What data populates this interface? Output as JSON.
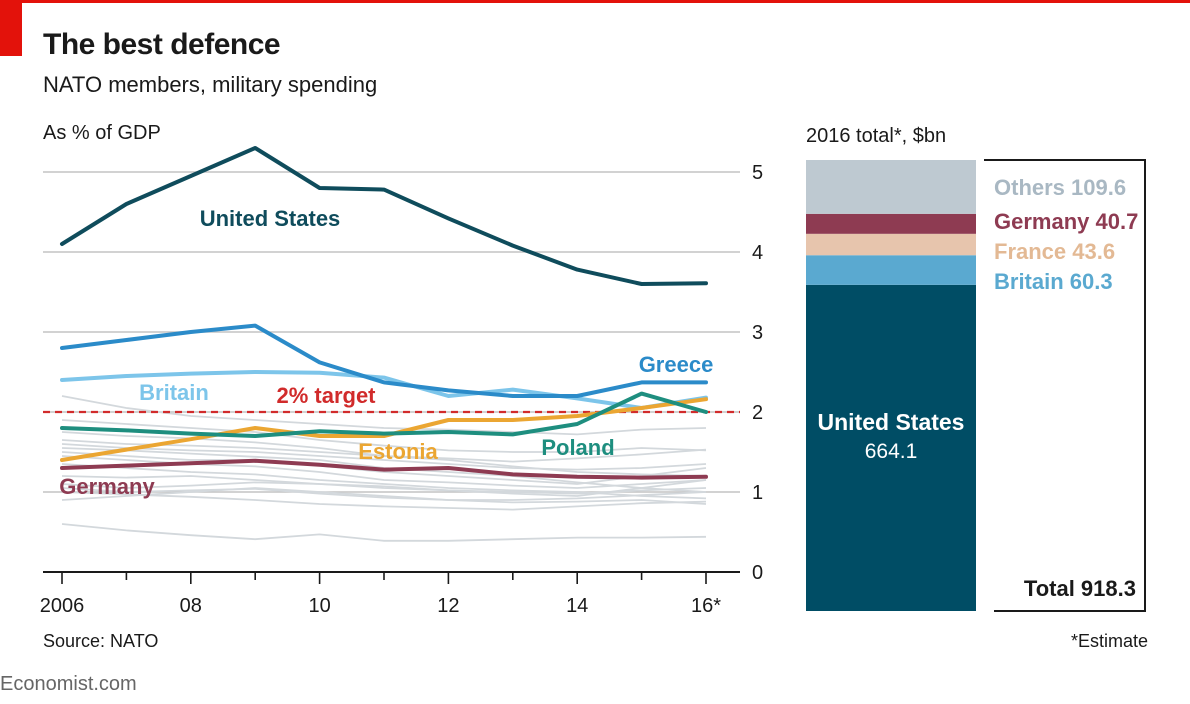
{
  "header": {
    "title": "The best defence",
    "subtitle": "NATO members, military spending"
  },
  "footer": {
    "source": "Source: NATO",
    "estimate_note": "*Estimate",
    "credit": "Economist.com"
  },
  "colors": {
    "accent_red": "#e3120b",
    "united_states": "#0f4c5c",
    "greece": "#2b8bc9",
    "britain": "#7dc5ea",
    "estonia": "#eba632",
    "poland": "#1e8e7f",
    "germany": "#8e3b52",
    "others_lines": "#d3d8dc",
    "target_line": "#d12b2b",
    "bar_united_states": "#004d65",
    "bar_britain": "#5aa9d0",
    "bar_france": "#e7c5ad",
    "bar_germany": "#8e3b52",
    "bar_others": "#bec9d1"
  },
  "chart_data": [
    {
      "type": "line",
      "title": "As % of GDP",
      "x": [
        2006,
        2007,
        2008,
        2009,
        2010,
        2011,
        2012,
        2013,
        2014,
        2015,
        2016
      ],
      "x_tick_values": [
        2006,
        2008,
        2010,
        2012,
        2014,
        2016
      ],
      "x_tick_labels": [
        "2006",
        "08",
        "10",
        "12",
        "14",
        "16*"
      ],
      "ylim": [
        0,
        5.4
      ],
      "y_ticks": [
        0,
        1,
        2,
        3,
        4,
        5
      ],
      "grid": true,
      "axis_side": "right",
      "target": {
        "value": 2,
        "label": "2% target"
      },
      "series": [
        {
          "name": "United States",
          "values": [
            4.1,
            4.6,
            4.95,
            5.3,
            4.8,
            4.78,
            4.42,
            4.08,
            3.78,
            3.6,
            3.61
          ],
          "color": "#0f4c5c",
          "width": 4
        },
        {
          "name": "Greece",
          "values": [
            2.8,
            2.9,
            3.0,
            3.08,
            2.62,
            2.37,
            2.27,
            2.2,
            2.2,
            2.37,
            2.37
          ],
          "color": "#2b8bc9",
          "width": 4
        },
        {
          "name": "Britain",
          "values": [
            2.4,
            2.45,
            2.48,
            2.5,
            2.49,
            2.43,
            2.2,
            2.28,
            2.17,
            2.05,
            2.18
          ],
          "color": "#7dc5ea",
          "width": 4
        },
        {
          "name": "Estonia",
          "values": [
            1.4,
            1.53,
            1.66,
            1.8,
            1.7,
            1.7,
            1.9,
            1.9,
            1.95,
            2.05,
            2.16
          ],
          "color": "#eba632",
          "width": 4
        },
        {
          "name": "Poland",
          "values": [
            1.8,
            1.77,
            1.73,
            1.7,
            1.76,
            1.73,
            1.75,
            1.72,
            1.85,
            2.23,
            2.0
          ],
          "color": "#1e8e7f",
          "width": 4
        },
        {
          "name": "Germany",
          "values": [
            1.3,
            1.33,
            1.36,
            1.39,
            1.34,
            1.28,
            1.3,
            1.22,
            1.19,
            1.18,
            1.19
          ],
          "color": "#8e3b52",
          "width": 4
        }
      ],
      "other_members": [
        [
          0.6,
          0.52,
          0.46,
          0.41,
          0.47,
          0.39,
          0.39,
          0.41,
          0.43,
          0.43,
          0.44
        ],
        [
          1.05,
          1.0,
          1.02,
          1.04,
          0.98,
          0.93,
          0.9,
          0.9,
          0.92,
          0.96,
          1.0
        ],
        [
          1.2,
          1.18,
          1.2,
          1.15,
          1.1,
          1.07,
          1.02,
          0.98,
          0.95,
          1.05,
          1.15
        ],
        [
          1.5,
          1.45,
          1.4,
          1.4,
          1.33,
          1.25,
          1.2,
          1.15,
          1.1,
          1.2,
          1.3
        ],
        [
          1.65,
          1.6,
          1.58,
          1.55,
          1.5,
          1.45,
          1.42,
          1.38,
          1.42,
          1.47,
          1.53
        ],
        [
          2.2,
          2.05,
          1.95,
          1.9,
          1.85,
          1.8,
          1.78,
          1.75,
          1.72,
          1.78,
          1.8
        ],
        [
          1.75,
          1.7,
          1.67,
          1.62,
          1.55,
          1.45,
          1.4,
          1.32,
          1.25,
          1.22,
          1.2
        ],
        [
          1.55,
          1.52,
          1.48,
          1.44,
          1.4,
          1.3,
          1.25,
          1.2,
          1.12,
          1.05,
          1.0
        ],
        [
          1.35,
          1.3,
          1.25,
          1.22,
          1.15,
          1.1,
          1.05,
          1.02,
          1.0,
          0.95,
          0.92
        ],
        [
          1.0,
          0.97,
          0.94,
          0.9,
          0.85,
          0.82,
          0.8,
          0.78,
          0.82,
          0.86,
          0.88
        ],
        [
          0.9,
          0.95,
          1.0,
          1.05,
          1.0,
          0.95,
          0.9,
          0.87,
          0.88,
          0.9,
          0.85
        ],
        [
          1.45,
          1.4,
          1.35,
          1.32,
          1.25,
          1.15,
          1.12,
          1.08,
          1.05,
          1.1,
          1.15
        ],
        [
          1.9,
          1.85,
          1.8,
          1.75,
          1.65,
          1.58,
          1.52,
          1.5,
          1.5,
          1.55,
          1.52
        ],
        [
          1.1,
          1.05,
          1.08,
          1.12,
          1.1,
          1.05,
          1.02,
          1.0,
          0.98,
          1.02,
          1.05
        ],
        [
          1.6,
          1.55,
          1.52,
          1.5,
          1.45,
          1.4,
          1.35,
          1.3,
          1.28,
          1.3,
          1.35
        ]
      ]
    },
    {
      "type": "bar",
      "stacked": true,
      "title": "2016 total*, $bn",
      "segments": [
        {
          "name": "United States",
          "value": 664.1
        },
        {
          "name": "Britain",
          "value": 60.3
        },
        {
          "name": "France",
          "value": 43.6
        },
        {
          "name": "Germany",
          "value": 40.7
        },
        {
          "name": "Others",
          "value": 109.6
        }
      ],
      "total_label": "Total 918.3",
      "total_value": 918.3
    }
  ]
}
